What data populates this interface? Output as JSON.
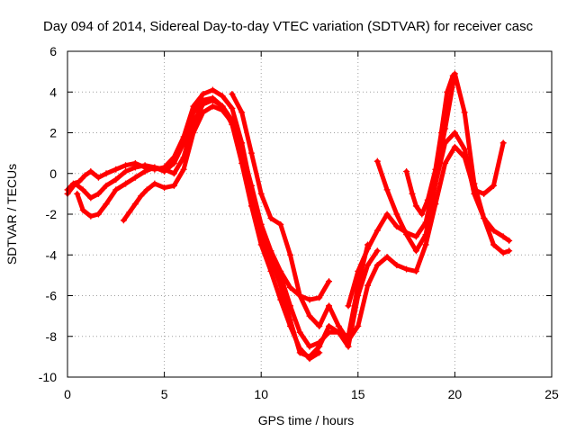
{
  "chart_data": {
    "type": "scatter",
    "title": "Day 094 of 2014, Sidereal Day-to-day VTEC variation (SDTVAR) for receiver casc",
    "xlabel": "GPS time / hours",
    "ylabel": "SDTVAR / TECUs",
    "xlim": [
      0,
      25
    ],
    "ylim": [
      -10,
      6
    ],
    "xticks": [
      0,
      5,
      10,
      15,
      20,
      25
    ],
    "yticks": [
      -10,
      -8,
      -6,
      -4,
      -2,
      0,
      2,
      4,
      6
    ],
    "grid": true,
    "marker": "plus",
    "color": "#ff0000",
    "series": [
      {
        "x": [
          0.0,
          0.3,
          0.6,
          0.9,
          1.2,
          1.6,
          2.0,
          2.5,
          3.0,
          3.5,
          4.0,
          4.5,
          5.0,
          5.5,
          6.0,
          6.5,
          7.0,
          7.5,
          8.0,
          8.5,
          9.0,
          9.5,
          10.0,
          10.5,
          11.0,
          11.5,
          12.0,
          12.5,
          13.0,
          13.5,
          14.0,
          14.5,
          15.0,
          15.5
        ],
        "y": [
          -0.8,
          -0.5,
          -0.4,
          -0.1,
          0.1,
          -0.2,
          0.0,
          0.2,
          0.4,
          0.5,
          0.3,
          0.2,
          0.3,
          0.8,
          1.8,
          3.3,
          3.9,
          4.1,
          3.8,
          3.2,
          1.5,
          -0.8,
          -2.8,
          -4.0,
          -5.0,
          -6.5,
          -7.8,
          -8.5,
          -8.3,
          -7.8,
          -7.8,
          -8.0,
          -5.5,
          -3.5
        ]
      },
      {
        "x": [
          0.0,
          0.4,
          0.8,
          1.2,
          1.6,
          2.0,
          2.5,
          3.0,
          3.5,
          4.0,
          4.5,
          5.0,
          5.5,
          6.0,
          6.5,
          7.0,
          7.5,
          8.0,
          8.5,
          9.0,
          9.5,
          10.0,
          10.5,
          11.0,
          11.5,
          12.0,
          12.5,
          13.0,
          13.5,
          14.0,
          14.5,
          15.0,
          15.5,
          16.0
        ],
        "y": [
          -1.0,
          -0.5,
          -0.8,
          -1.2,
          -1.0,
          -0.6,
          -0.3,
          0.1,
          0.3,
          0.4,
          0.3,
          0.1,
          0.5,
          1.5,
          3.0,
          3.6,
          3.7,
          3.3,
          2.6,
          0.8,
          -1.2,
          -3.0,
          -4.2,
          -5.5,
          -7.2,
          -8.8,
          -9.0,
          -8.5,
          -7.5,
          -7.8,
          -8.5,
          -6.0,
          -4.5,
          -3.8
        ]
      },
      {
        "x": [
          0.5,
          0.8,
          1.2,
          1.6,
          2.0,
          2.5,
          3.0,
          3.5,
          4.0,
          4.5,
          5.0,
          5.5,
          6.0,
          6.5,
          7.0,
          7.5,
          8.0,
          8.5,
          9.0,
          9.5,
          10.0,
          10.5,
          11.0,
          11.5,
          12.0,
          12.5,
          13.0
        ],
        "y": [
          -1.0,
          -1.8,
          -2.1,
          -2.0,
          -1.5,
          -0.8,
          -0.5,
          -0.2,
          0.1,
          0.3,
          0.2,
          0.0,
          0.8,
          2.5,
          3.4,
          3.6,
          3.3,
          2.4,
          0.5,
          -1.6,
          -3.5,
          -4.8,
          -6.2,
          -7.5,
          -8.6,
          -9.1,
          -8.8
        ]
      },
      {
        "x": [
          2.9,
          3.2,
          3.5,
          3.8,
          4.1,
          4.5,
          5.0,
          5.5,
          6.0,
          6.5,
          7.0,
          7.5,
          8.0,
          8.5,
          9.0,
          9.5,
          10.0,
          10.5,
          11.0,
          11.5,
          12.0,
          12.5,
          13.0,
          13.5
        ],
        "y": [
          -2.3,
          -1.9,
          -1.5,
          -1.1,
          -0.8,
          -0.5,
          -0.7,
          -0.6,
          0.2,
          2.0,
          3.0,
          3.3,
          3.1,
          2.5,
          1.2,
          -0.6,
          -2.5,
          -3.8,
          -4.8,
          -5.6,
          -6.0,
          -6.2,
          -6.1,
          -5.3
        ]
      },
      {
        "x": [
          8.5,
          9.0,
          9.5,
          10.0,
          10.5,
          11.0,
          11.5,
          12.0,
          12.5,
          13.0,
          13.5,
          14.0,
          14.5,
          15.0,
          15.5,
          16.0,
          16.5,
          17.0,
          17.5,
          18.0,
          18.5,
          19.0,
          19.5,
          20.0,
          20.5,
          21.0,
          21.5,
          22.0,
          22.5
        ],
        "y": [
          3.9,
          3.0,
          1.0,
          -1.0,
          -2.2,
          -2.5,
          -4.0,
          -6.0,
          -7.0,
          -7.5,
          -6.5,
          -7.5,
          -8.2,
          -7.5,
          -5.5,
          -4.5,
          -4.1,
          -4.5,
          -4.7,
          -4.8,
          -3.5,
          -1.5,
          0.5,
          1.3,
          0.8,
          -0.8,
          -1.0,
          -0.6,
          1.5
        ]
      },
      {
        "x": [
          14.5,
          15.0,
          15.5,
          16.0,
          16.5,
          17.0,
          17.5,
          18.0,
          18.5,
          19.0,
          19.5,
          20.0,
          20.5,
          21.0,
          21.5,
          22.0,
          22.5,
          22.8
        ],
        "y": [
          -6.5,
          -4.8,
          -3.7,
          -2.8,
          -2.0,
          -2.6,
          -2.9,
          -3.1,
          -2.4,
          -0.2,
          2.2,
          4.9,
          3.0,
          -0.5,
          -2.2,
          -3.5,
          -3.9,
          -3.8
        ]
      },
      {
        "x": [
          16.0,
          16.5,
          17.0,
          17.5,
          18.0,
          18.5,
          19.0,
          19.5,
          20.0,
          20.5,
          21.0,
          21.5,
          22.0,
          22.5,
          22.8
        ],
        "y": [
          0.6,
          -0.8,
          -2.0,
          -3.0,
          -3.8,
          -3.0,
          -0.5,
          1.5,
          2.0,
          1.2,
          -1.0,
          -2.2,
          -2.8,
          -3.1,
          -3.3
        ]
      },
      {
        "x": [
          17.5,
          17.8,
          18.0,
          18.3,
          18.6,
          19.0,
          19.3,
          19.6,
          19.9
        ],
        "y": [
          0.1,
          -1.0,
          -1.6,
          -2.0,
          -1.3,
          0.2,
          2.0,
          4.0,
          4.8
        ]
      }
    ]
  }
}
